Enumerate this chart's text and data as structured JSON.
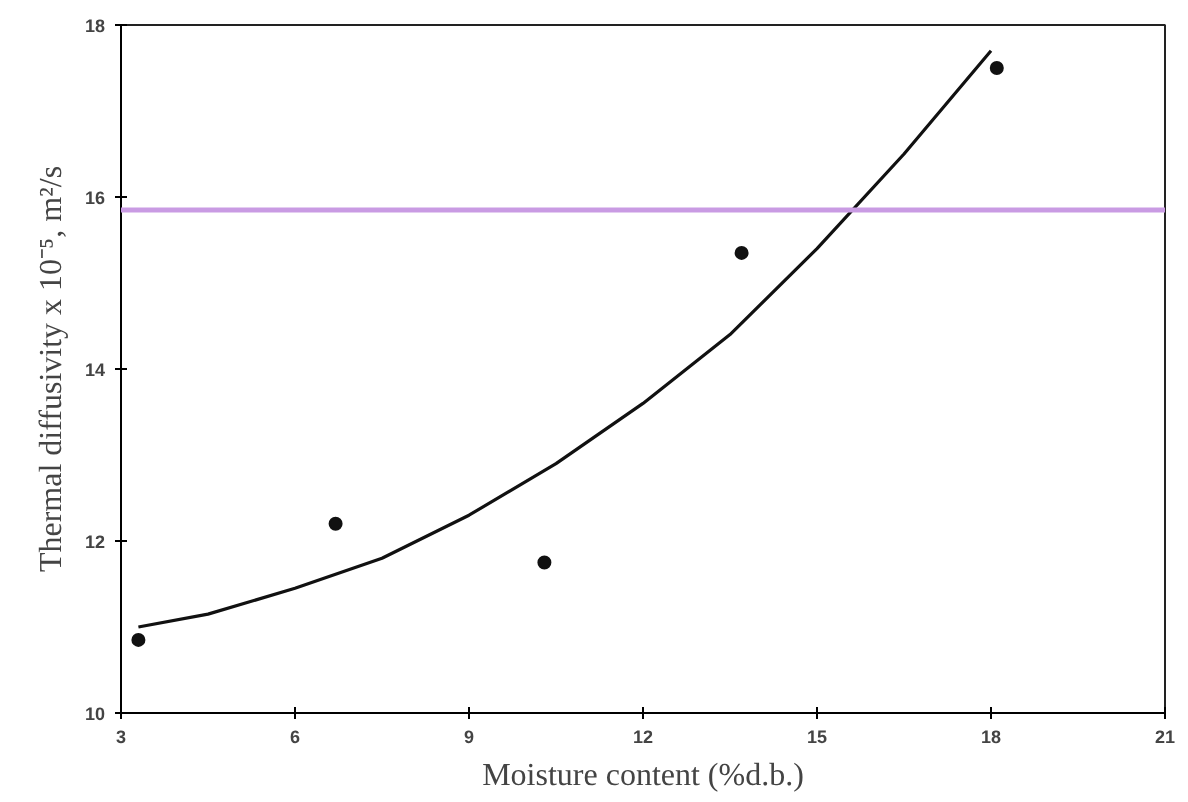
{
  "chart_data": {
    "type": "scatter",
    "xlabel": "Moisture content (%d.b.)",
    "ylabel": "Thermal diffusivity x 10⁻⁵, m²/s",
    "series": [
      {
        "marker": "circle",
        "color": "#111111",
        "x": [
          3.3,
          6.7,
          10.3,
          13.7,
          18.1
        ],
        "values": [
          10.85,
          12.2,
          11.75,
          15.35,
          17.5
        ]
      },
      {
        "type": "line",
        "marker": "none",
        "color": "#111111",
        "x": [
          3.3,
          4.5,
          6,
          7.5,
          9,
          10.5,
          12,
          13.5,
          15,
          16.5,
          18
        ],
        "values": [
          11.0,
          11.15,
          11.45,
          11.8,
          12.3,
          12.9,
          13.6,
          14.4,
          15.4,
          16.5,
          17.7
        ]
      }
    ],
    "xlim": [
      3,
      21
    ],
    "xticks": [
      3,
      6,
      9,
      12,
      15,
      18,
      21
    ],
    "ylim": [
      10,
      18
    ],
    "yticks": [
      10,
      12,
      14,
      16,
      18
    ],
    "ref_lines": [
      {
        "axis": "y",
        "value": 15.85,
        "color": "#c99be3"
      }
    ],
    "grid": false
  }
}
